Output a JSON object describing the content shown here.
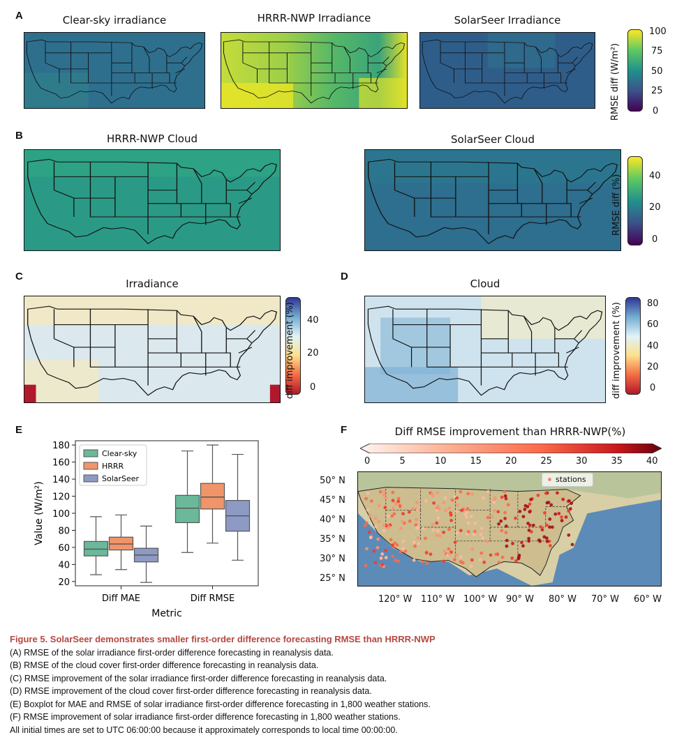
{
  "panels": {
    "a": {
      "label": "A",
      "titles": [
        "Clear-sky irradiance",
        "HRRR-NWP Irradiance",
        "SolarSeer Irradiance"
      ],
      "colorbar": {
        "label": "RMSE diff (W/m²)",
        "ticks": [
          "100",
          "75",
          "50",
          "25",
          "0"
        ]
      }
    },
    "b": {
      "label": "B",
      "titles": [
        "HRRR-NWP Cloud",
        "SolarSeer Cloud"
      ],
      "colorbar": {
        "label": "RMSE diff (%)",
        "ticks": [
          "40",
          "20",
          "0"
        ]
      }
    },
    "c": {
      "label": "C",
      "title": "Irradiance",
      "colorbar": {
        "label": "diff improvement (%)",
        "ticks": [
          "40",
          "20",
          "0"
        ]
      }
    },
    "d": {
      "label": "D",
      "title": "Cloud",
      "colorbar": {
        "label": "diff improvement (%)",
        "ticks": [
          "80",
          "60",
          "40",
          "20",
          "0"
        ]
      }
    },
    "e": {
      "label": "E"
    },
    "f": {
      "label": "F",
      "title": "Diff RMSE improvement than HRRR-NWP(%)",
      "colorbar_ticks": [
        "0",
        "5",
        "10",
        "15",
        "20",
        "25",
        "30",
        "35",
        "40"
      ],
      "legend": "stations",
      "lat_labels": [
        "50° N",
        "45° N",
        "40° N",
        "35° N",
        "30° N",
        "25° N"
      ],
      "lon_labels": [
        "120° W",
        "110° W",
        "100° W",
        "90° W",
        "80° W",
        "70° W",
        "60° W"
      ]
    }
  },
  "chart_data": {
    "type": "boxplot",
    "title": "",
    "xlabel": "Metric",
    "ylabel": "Value (W/m²)",
    "ylim": [
      15,
      185
    ],
    "yticks": [
      20,
      40,
      60,
      80,
      100,
      120,
      140,
      160,
      180
    ],
    "categories": [
      "Diff MAE",
      "Diff RMSE"
    ],
    "series": [
      {
        "name": "Clear-sky",
        "color": "#6bb89a",
        "boxes": [
          {
            "min": 28,
            "q1": 50,
            "median": 58,
            "q3": 67,
            "max": 96
          },
          {
            "min": 54,
            "q1": 89,
            "median": 106,
            "q3": 121,
            "max": 173
          }
        ]
      },
      {
        "name": "HRRR",
        "color": "#f0956a",
        "boxes": [
          {
            "min": 34,
            "q1": 57,
            "median": 64,
            "q3": 72,
            "max": 98
          },
          {
            "min": 65,
            "q1": 105,
            "median": 119,
            "q3": 135,
            "max": 180
          }
        ]
      },
      {
        "name": "SolarSeer",
        "color": "#8d9ac3",
        "boxes": [
          {
            "min": 19,
            "q1": 43,
            "median": 51,
            "q3": 59,
            "max": 85
          },
          {
            "min": 45,
            "q1": 79,
            "median": 97,
            "q3": 115,
            "max": 169
          }
        ]
      }
    ]
  },
  "caption": {
    "title": "Figure 5.  SolarSeer demonstrates smaller first-order difference forecasting RMSE than HRRR-NWP",
    "lines": [
      "(A) RMSE of the solar irradiance first-order difference forecasting in reanalysis data.",
      "(B) RMSE of the cloud cover first-order difference forecasting in reanalysis data.",
      "(C) RMSE improvement of the solar irradiance first-order difference forecasting in reanalysis data.",
      "(D) RMSE improvement of the cloud cover first-order difference forecasting in reanalysis data.",
      "(E) Boxplot for MAE and RMSE of solar irradiance first-order difference forecasting in 1,800 weather stations.",
      "(F) RMSE improvement of solar irradiance first-order difference forecasting in 1,800 weather stations.",
      "All initial times are set to UTC 06:00:00 because it approximately corresponds to local time 00:00:00."
    ]
  },
  "colors": {
    "caption_title": "#b5473f"
  }
}
